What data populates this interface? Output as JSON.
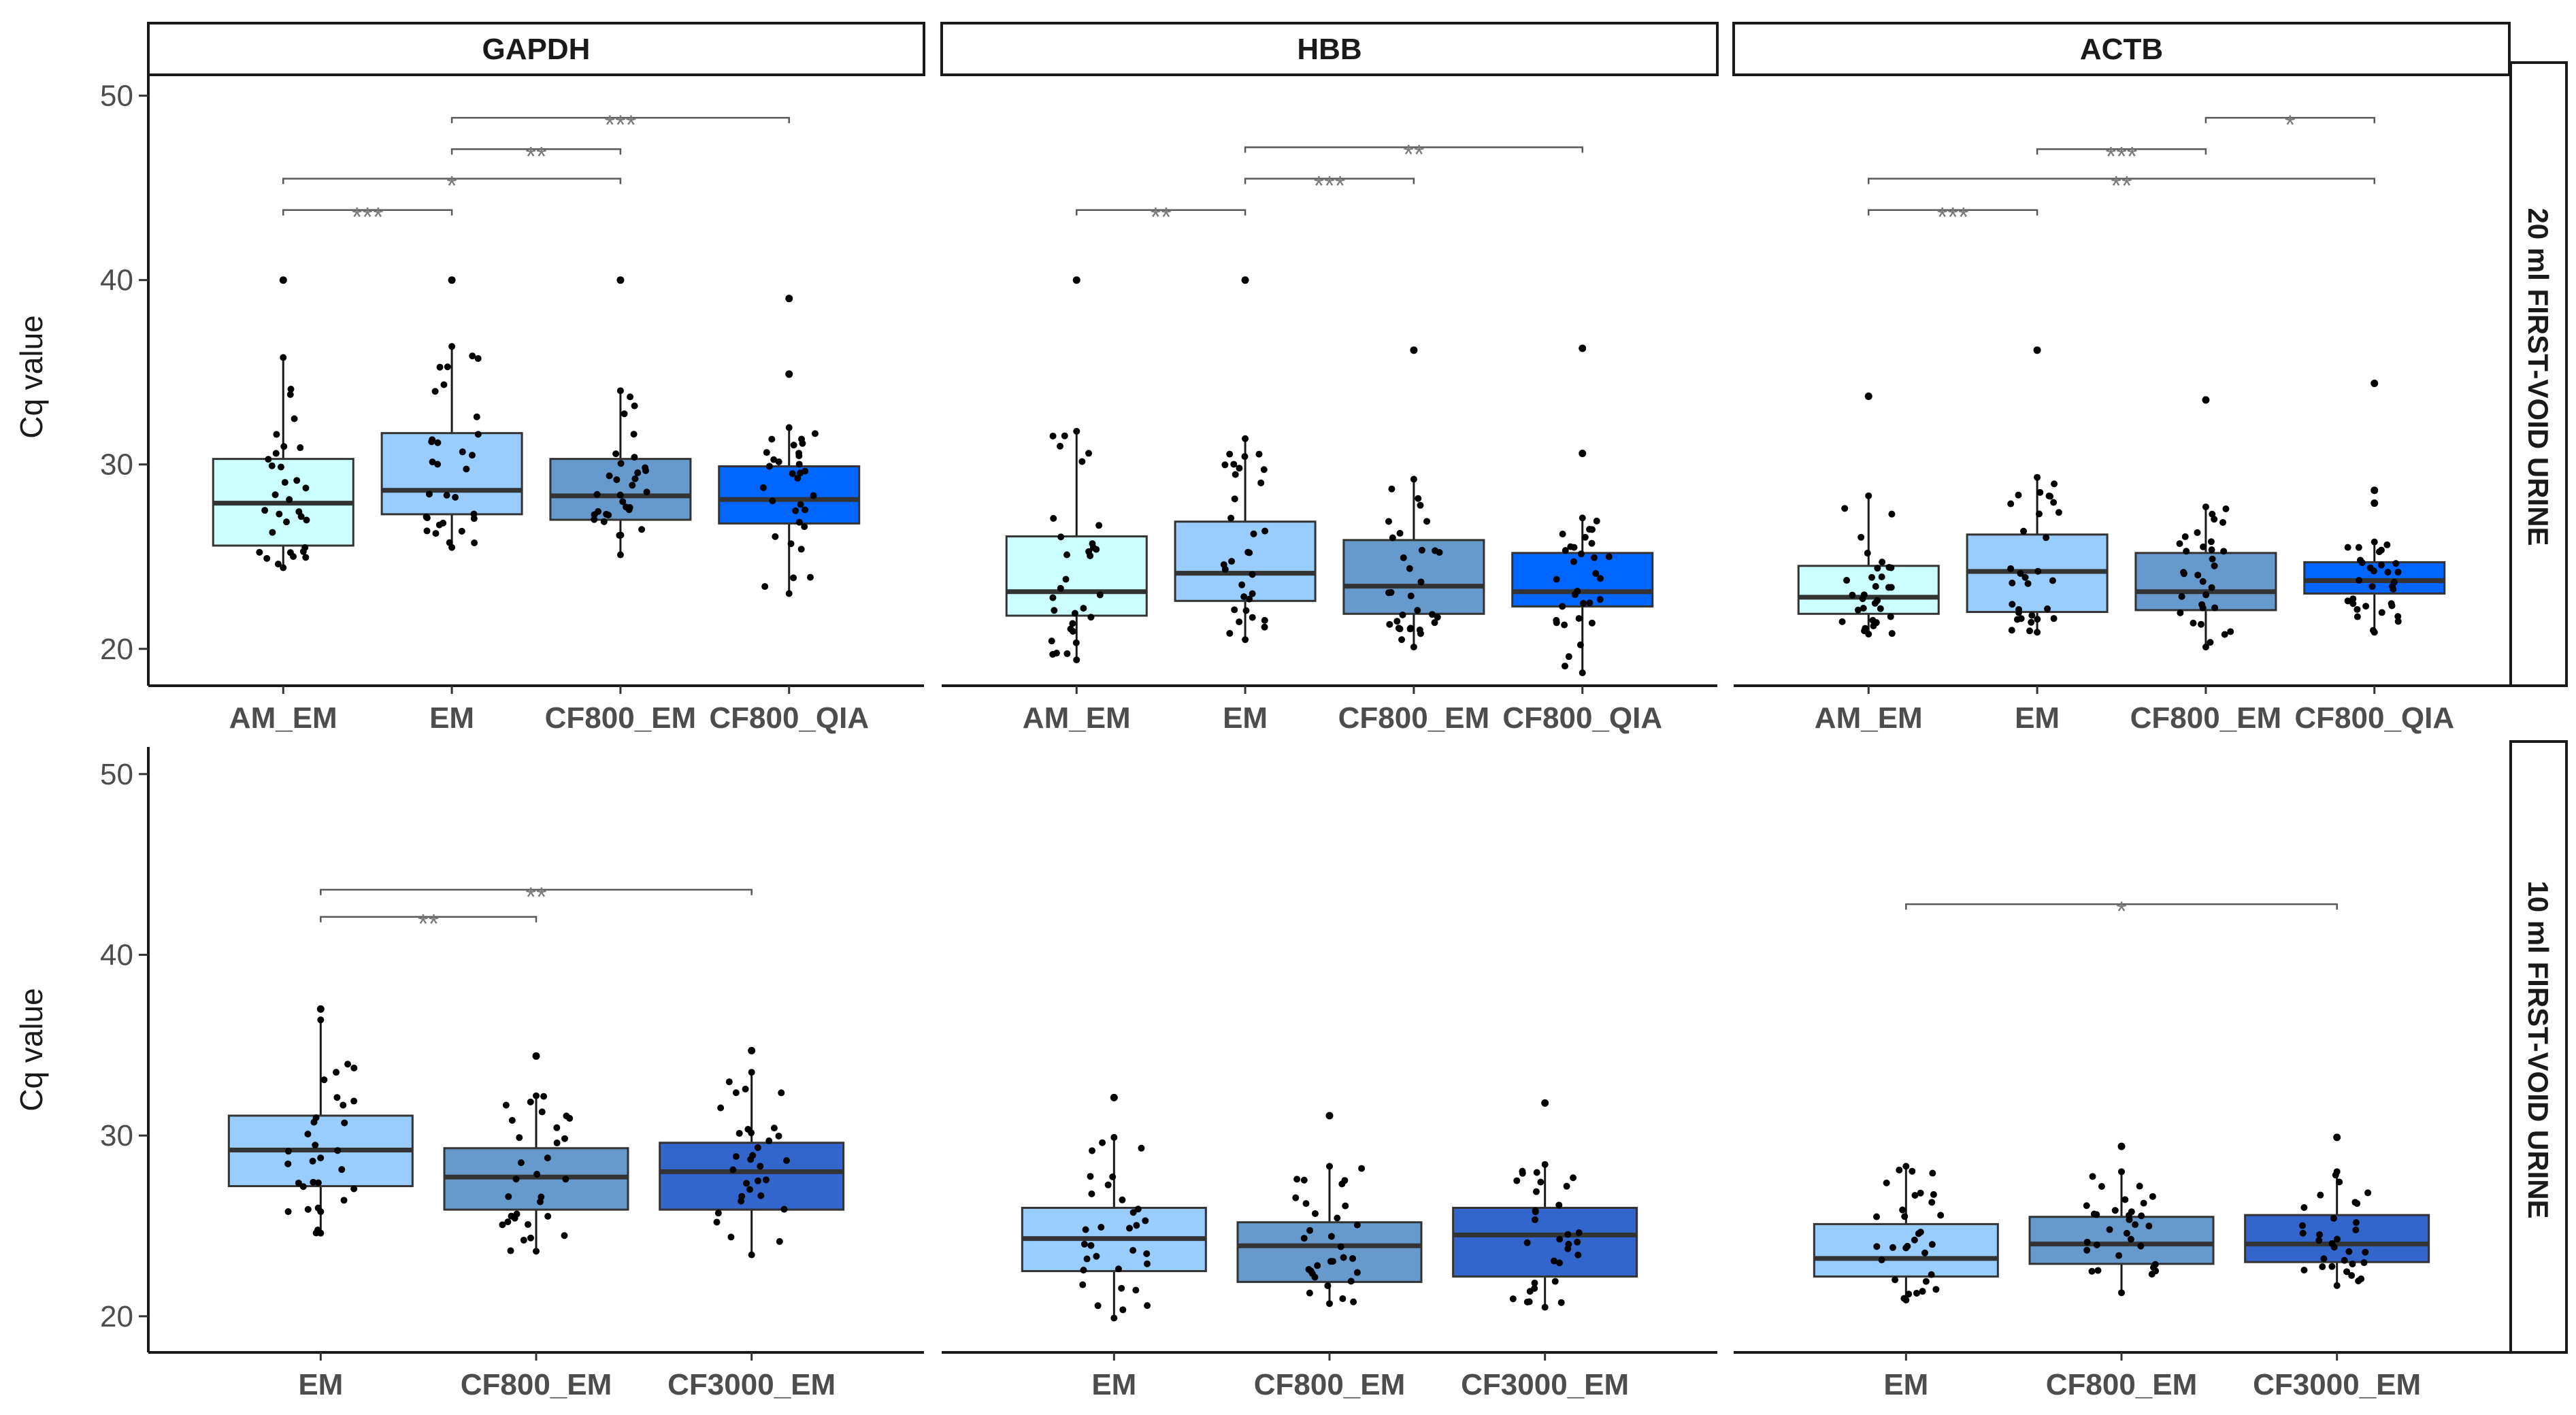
{
  "chart_data": {
    "type": "box",
    "ylabel": "Cq value",
    "ylim": [
      18,
      51.5
    ],
    "yticks": [
      20,
      30,
      40,
      50
    ],
    "columns": [
      "GAPDH",
      "HBB",
      "ACTB"
    ],
    "rows": [
      {
        "label": "20 ml FIRST-VOID URINE",
        "categories": [
          "AM_EM",
          "EM",
          "CF800_EM",
          "CF800_QIA"
        ],
        "panels": [
          {
            "gene": "GAPDH",
            "boxes": [
              {
                "category": "AM_EM",
                "q1": 25.6,
                "median": 27.9,
                "q3": 30.3,
                "whisker_low": 24.4,
                "whisker_high": 35.8,
                "outliers": [
                  40
                ],
                "color": "#ccffff"
              },
              {
                "category": "EM",
                "q1": 27.3,
                "median": 28.6,
                "q3": 31.7,
                "whisker_low": 25.5,
                "whisker_high": 36.4,
                "outliers": [
                  40
                ],
                "color": "#99ccff"
              },
              {
                "category": "CF800_EM",
                "q1": 27.0,
                "median": 28.3,
                "q3": 30.3,
                "whisker_low": 25.1,
                "whisker_high": 34.0,
                "outliers": [
                  40
                ],
                "color": "#6699cc"
              },
              {
                "category": "CF800_QIA",
                "q1": 26.8,
                "median": 28.1,
                "q3": 29.9,
                "whisker_low": 23.0,
                "whisker_high": 32.0,
                "outliers": [
                  34.9,
                  39.0
                ],
                "color": "#0066ff"
              }
            ],
            "significance": [
              {
                "from": "AM_EM",
                "to": "EM",
                "y": 43.8,
                "label": "***"
              },
              {
                "from": "AM_EM",
                "to": "CF800_EM",
                "y": 45.5,
                "label": "*"
              },
              {
                "from": "EM",
                "to": "CF800_EM",
                "y": 47.1,
                "label": "**"
              },
              {
                "from": "EM",
                "to": "CF800_QIA",
                "y": 48.8,
                "label": "***"
              }
            ]
          },
          {
            "gene": "HBB",
            "boxes": [
              {
                "category": "AM_EM",
                "q1": 21.8,
                "median": 23.1,
                "q3": 26.1,
                "whisker_low": 19.4,
                "whisker_high": 31.8,
                "outliers": [
                  40
                ],
                "color": "#ccffff"
              },
              {
                "category": "EM",
                "q1": 22.6,
                "median": 24.1,
                "q3": 26.9,
                "whisker_low": 20.5,
                "whisker_high": 31.4,
                "outliers": [
                  40
                ],
                "color": "#99ccff"
              },
              {
                "category": "CF800_EM",
                "q1": 21.9,
                "median": 23.4,
                "q3": 25.9,
                "whisker_low": 20.1,
                "whisker_high": 29.2,
                "outliers": [
                  36.2
                ],
                "color": "#6699cc"
              },
              {
                "category": "CF800_QIA",
                "q1": 22.3,
                "median": 23.1,
                "q3": 25.2,
                "whisker_low": 18.7,
                "whisker_high": 27.1,
                "outliers": [
                  30.6,
                  36.3
                ],
                "color": "#0066ff"
              }
            ],
            "significance": [
              {
                "from": "AM_EM",
                "to": "EM",
                "y": 43.8,
                "label": "**"
              },
              {
                "from": "EM",
                "to": "CF800_EM",
                "y": 45.5,
                "label": "***"
              },
              {
                "from": "EM",
                "to": "CF800_QIA",
                "y": 47.2,
                "label": "**"
              }
            ]
          },
          {
            "gene": "ACTB",
            "boxes": [
              {
                "category": "AM_EM",
                "q1": 21.9,
                "median": 22.8,
                "q3": 24.5,
                "whisker_low": 20.8,
                "whisker_high": 28.3,
                "outliers": [
                  33.7
                ],
                "color": "#ccffff"
              },
              {
                "category": "EM",
                "q1": 22.0,
                "median": 24.2,
                "q3": 26.2,
                "whisker_low": 20.9,
                "whisker_high": 29.3,
                "outliers": [
                  36.2
                ],
                "color": "#99ccff"
              },
              {
                "category": "CF800_EM",
                "q1": 22.1,
                "median": 23.1,
                "q3": 25.2,
                "whisker_low": 20.1,
                "whisker_high": 27.7,
                "outliers": [
                  33.5
                ],
                "color": "#6699cc"
              },
              {
                "category": "CF800_QIA",
                "q1": 23.0,
                "median": 23.7,
                "q3": 24.7,
                "whisker_low": 20.9,
                "whisker_high": 25.8,
                "outliers": [
                  27.9,
                  28.6,
                  34.4
                ],
                "color": "#0066ff"
              }
            ],
            "significance": [
              {
                "from": "AM_EM",
                "to": "EM",
                "y": 43.8,
                "label": "***"
              },
              {
                "from": "AM_EM",
                "to": "CF800_QIA",
                "y": 45.5,
                "label": "**"
              },
              {
                "from": "EM",
                "to": "CF800_EM",
                "y": 47.1,
                "label": "***"
              },
              {
                "from": "CF800_EM",
                "to": "CF800_QIA",
                "y": 48.8,
                "label": "*"
              }
            ]
          }
        ]
      },
      {
        "label": "10 ml FIRST-VOID URINE",
        "categories": [
          "EM",
          "CF800_EM",
          "CF3000_EM"
        ],
        "panels": [
          {
            "gene": "GAPDH",
            "boxes": [
              {
                "category": "EM",
                "q1": 27.2,
                "median": 29.2,
                "q3": 31.1,
                "whisker_low": 24.6,
                "whisker_high": 36.4,
                "outliers": [
                  37.0
                ],
                "color": "#99ccff"
              },
              {
                "category": "CF800_EM",
                "q1": 25.9,
                "median": 27.7,
                "q3": 29.3,
                "whisker_low": 23.6,
                "whisker_high": 32.2,
                "outliers": [
                  34.4
                ],
                "color": "#6699cc"
              },
              {
                "category": "CF3000_EM",
                "q1": 25.9,
                "median": 28.0,
                "q3": 29.6,
                "whisker_low": 23.4,
                "whisker_high": 33.5,
                "outliers": [
                  34.7
                ],
                "color": "#3366cc"
              }
            ],
            "significance": [
              {
                "from": "EM",
                "to": "CF800_EM",
                "y": 42.1,
                "label": "**"
              },
              {
                "from": "EM",
                "to": "CF3000_EM",
                "y": 43.6,
                "label": "**"
              }
            ]
          },
          {
            "gene": "HBB",
            "boxes": [
              {
                "category": "EM",
                "q1": 22.5,
                "median": 24.3,
                "q3": 26.0,
                "whisker_low": 19.9,
                "whisker_high": 29.9,
                "outliers": [
                  32.1
                ],
                "color": "#99ccff"
              },
              {
                "category": "CF800_EM",
                "q1": 21.9,
                "median": 23.9,
                "q3": 25.2,
                "whisker_low": 20.7,
                "whisker_high": 28.3,
                "outliers": [
                  31.1
                ],
                "color": "#6699cc"
              },
              {
                "category": "CF3000_EM",
                "q1": 22.2,
                "median": 24.5,
                "q3": 26.0,
                "whisker_low": 20.5,
                "whisker_high": 28.4,
                "outliers": [
                  31.8
                ],
                "color": "#3366cc"
              }
            ],
            "significance": []
          },
          {
            "gene": "ACTB",
            "boxes": [
              {
                "category": "EM",
                "q1": 22.2,
                "median": 23.2,
                "q3": 25.1,
                "whisker_low": 20.9,
                "whisker_high": 28.3,
                "outliers": [],
                "color": "#99ccff"
              },
              {
                "category": "CF800_EM",
                "q1": 22.9,
                "median": 24.0,
                "q3": 25.5,
                "whisker_low": 21.3,
                "whisker_high": 28.0,
                "outliers": [
                  29.4
                ],
                "color": "#6699cc"
              },
              {
                "category": "CF3000_EM",
                "q1": 23.0,
                "median": 24.0,
                "q3": 25.6,
                "whisker_low": 21.7,
                "whisker_high": 28.0,
                "outliers": [
                  29.9
                ],
                "color": "#3366cc"
              }
            ],
            "significance": [
              {
                "from": "EM",
                "to": "CF3000_EM",
                "y": 42.8,
                "label": "*"
              }
            ]
          }
        ]
      }
    ],
    "colors": {
      "AM_EM": "#ccffff",
      "EM": "#99ccff",
      "CF800_EM": "#6699cc",
      "CF800_QIA": "#0066ff",
      "CF3000_EM": "#3366cc"
    },
    "grid": false,
    "legend": "none"
  }
}
